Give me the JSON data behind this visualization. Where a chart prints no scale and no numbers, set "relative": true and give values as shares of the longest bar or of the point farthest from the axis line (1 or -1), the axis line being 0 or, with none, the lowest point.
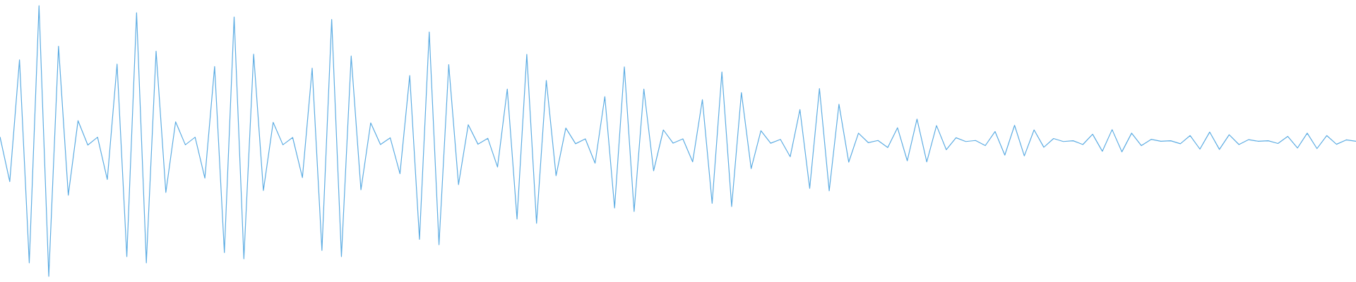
{
  "chart_data": {
    "type": "line",
    "relative": true,
    "line_style": "solid",
    "categories": [
      null,
      null,
      null,
      null,
      null,
      null,
      null,
      null,
      null,
      null,
      null,
      null,
      null,
      null,
      null,
      null,
      null,
      null,
      null,
      null,
      null,
      null,
      null,
      null,
      null,
      null,
      null,
      null,
      null,
      null,
      null,
      null,
      null,
      null,
      null,
      null,
      null,
      null,
      null,
      null,
      null,
      null,
      null,
      null,
      null,
      null,
      null,
      null,
      null,
      null,
      null,
      null,
      null,
      null,
      null,
      null,
      null,
      null,
      null,
      null,
      null,
      null,
      null,
      null,
      null,
      null,
      null,
      null,
      null,
      null,
      null,
      null,
      null,
      null,
      null,
      null,
      null,
      null,
      null,
      null,
      null,
      null,
      null,
      null,
      null,
      null,
      null,
      null,
      null,
      null,
      null,
      null,
      null,
      null,
      null,
      null,
      null,
      null,
      null,
      null,
      null,
      null,
      null,
      null,
      null,
      null,
      null,
      null,
      null,
      null,
      null,
      null,
      null,
      null,
      null,
      null,
      null,
      null,
      null,
      null,
      null,
      null,
      null,
      null,
      null,
      null,
      null,
      null,
      null,
      null,
      null,
      null,
      null,
      null,
      null,
      null,
      null,
      null,
      null,
      null
    ],
    "series": [
      {
        "color": "#5eade3",
        "values": [
          0.515,
          0.35,
          0.8,
          0.05,
          1,
          0,
          0.85,
          0.3,
          0.575,
          0.485,
          0.514,
          0.358,
          0.784,
          0.073,
          0.974,
          0.05,
          0.832,
          0.31,
          0.571,
          0.486,
          0.514,
          0.363,
          0.775,
          0.088,
          0.958,
          0.065,
          0.821,
          0.317,
          0.569,
          0.486,
          0.513,
          0.365,
          0.769,
          0.096,
          0.949,
          0.073,
          0.814,
          0.32,
          0.567,
          0.487,
          0.512,
          0.379,
          0.742,
          0.137,
          0.903,
          0.117,
          0.782,
          0.339,
          0.56,
          0.488,
          0.51,
          0.404,
          0.692,
          0.212,
          0.82,
          0.196,
          0.724,
          0.372,
          0.548,
          0.49,
          0.508,
          0.418,
          0.664,
          0.253,
          0.774,
          0.24,
          0.692,
          0.39,
          0.541,
          0.492,
          0.508,
          0.423,
          0.653,
          0.27,
          0.755,
          0.258,
          0.679,
          0.398,
          0.538,
          0.492,
          0.506,
          0.442,
          0.616,
          0.325,
          0.694,
          0.316,
          0.636,
          0.422,
          0.529,
          0.494,
          0.502,
          0.476,
          0.549,
          0.427,
          0.581,
          0.423,
          0.557,
          0.468,
          0.512,
          0.498,
          0.502,
          0.483,
          0.535,
          0.448,
          0.558,
          0.445,
          0.541,
          0.477,
          0.509,
          0.498,
          0.501,
          0.487,
          0.525,
          0.462,
          0.542,
          0.46,
          0.529,
          0.483,
          0.506,
          0.499,
          0.501,
          0.49,
          0.52,
          0.47,
          0.533,
          0.469,
          0.523,
          0.487,
          0.505,
          0.499,
          0.501,
          0.491,
          0.517,
          0.474,
          0.529,
          0.472,
          0.52,
          0.488,
          0.504,
          0.499
        ]
      }
    ]
  }
}
